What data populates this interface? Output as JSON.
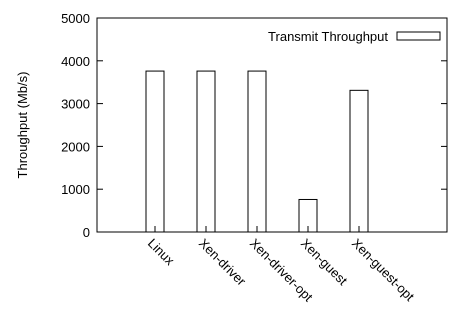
{
  "chart_data": {
    "type": "bar",
    "categories": [
      "Linux",
      "Xen-driver",
      "Xen-driver-opt",
      "Xen-guest",
      "Xen-guest-opt"
    ],
    "series": [
      {
        "name": "Transmit Throughput",
        "values": [
          3760,
          3760,
          3760,
          760,
          3310
        ]
      }
    ],
    "xlabel": "",
    "ylabel": "Throughput (Mb/s)",
    "ylim": [
      0,
      5000
    ],
    "yticks": [
      0,
      1000,
      2000,
      3000,
      4000,
      5000
    ],
    "legend_position": "top-right",
    "grid": false,
    "bar_fill": "#ffffff",
    "bar_stroke": "#000000"
  }
}
